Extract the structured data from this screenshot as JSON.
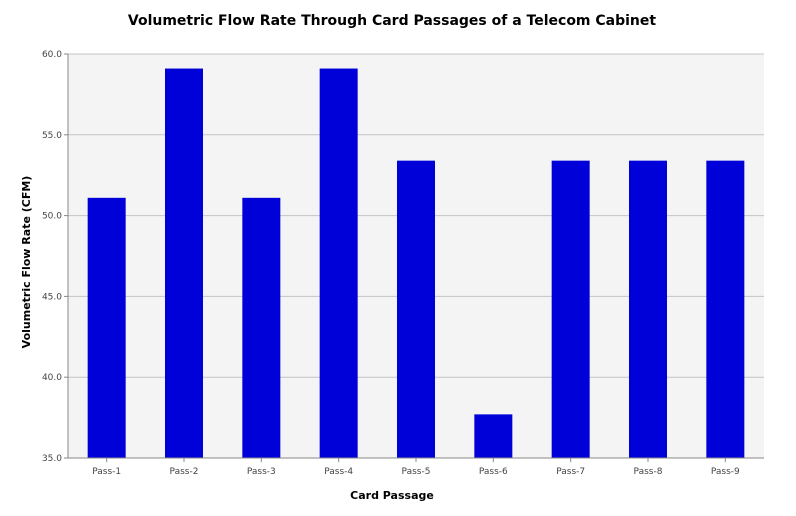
{
  "chart_data": {
    "type": "bar",
    "title": "Volumetric Flow Rate Through Card Passages of a Telecom Cabinet",
    "xlabel": "Card Passage",
    "ylabel": "Volumetric Flow Rate (CFM)",
    "categories": [
      "Pass-1",
      "Pass-2",
      "Pass-3",
      "Pass-4",
      "Pass-5",
      "Pass-6",
      "Pass-7",
      "Pass-8",
      "Pass-9"
    ],
    "values": [
      51.1,
      59.1,
      51.1,
      59.1,
      53.4,
      37.7,
      53.4,
      53.4,
      53.4
    ],
    "ylim": [
      35.0,
      60.0
    ],
    "yticks": [
      "35.0",
      "40.0",
      "45.0",
      "50.0",
      "55.0",
      "60.0"
    ],
    "grid": true,
    "colors": {
      "bar": "#0000d9",
      "plot_background": "#f4f4f4",
      "grid": "#c4c4c4",
      "axis": "#888888"
    }
  }
}
